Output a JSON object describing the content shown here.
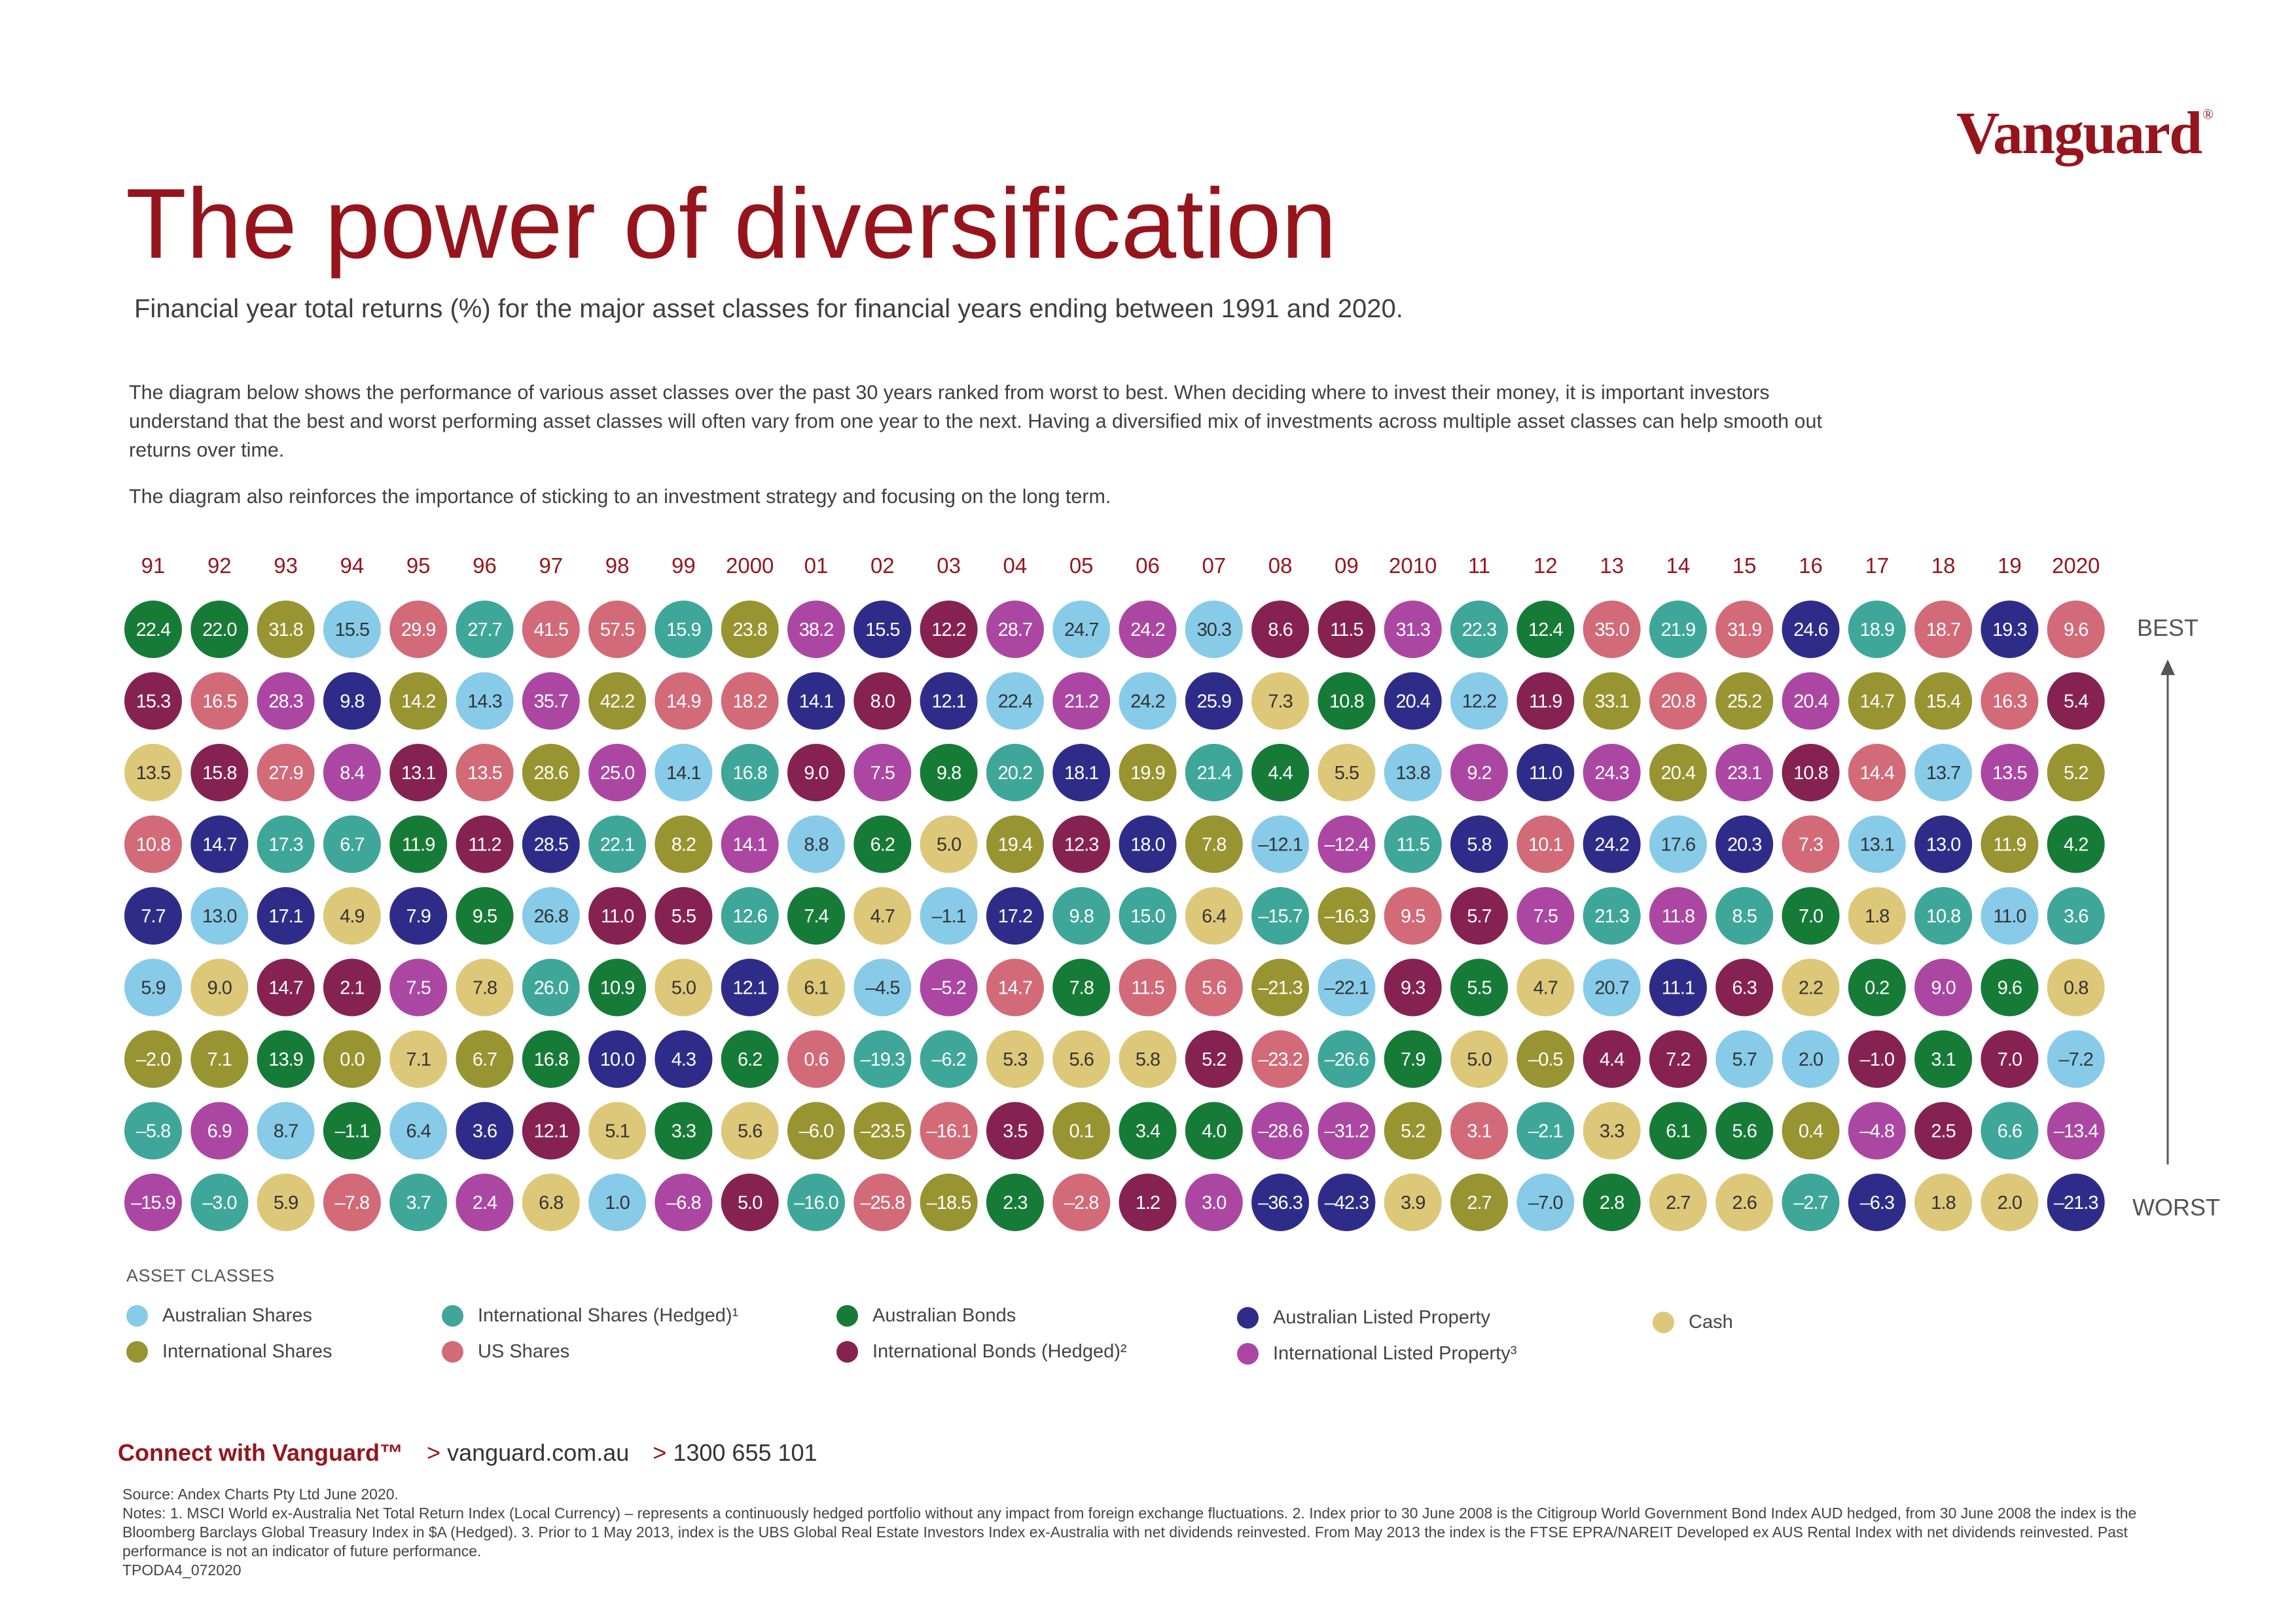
{
  "brand": {
    "name": "Vanguard",
    "mark": "®"
  },
  "header": {
    "title": "The power of diversification",
    "subtitle": "Financial year total returns (%) for the major asset classes for financial years ending between 1991 and 2020.",
    "intro": "The diagram below shows the performance of various asset classes over the past 30 years ranked from worst to best. When deciding where to invest their money, it is important investors understand that the best and worst performing asset classes will often vary from one year to the next. Having a diversified mix of investments across multiple asset classes can help smooth out returns over time.",
    "intro2": "The diagram also reinforces the importance of sticking to an investment strategy and focusing on the long term."
  },
  "chart_data": {
    "type": "table",
    "title": "The power of diversification",
    "years": [
      "91",
      "92",
      "93",
      "94",
      "95",
      "96",
      "97",
      "98",
      "99",
      "2000",
      "01",
      "02",
      "03",
      "04",
      "05",
      "06",
      "07",
      "08",
      "09",
      "2010",
      "11",
      "12",
      "13",
      "14",
      "15",
      "16",
      "17",
      "18",
      "19",
      "2020"
    ],
    "scale": {
      "best": "BEST",
      "worst": "WORST"
    },
    "ranks": [
      {
        "values": [
          "22.4",
          "22.0",
          "31.8",
          "15.5",
          "29.9",
          "27.7",
          "41.5",
          "57.5",
          "15.9",
          "23.8",
          "38.2",
          "15.5",
          "12.2",
          "28.7",
          "24.7",
          "24.2",
          "30.3",
          "8.6",
          "11.5",
          "31.3",
          "22.3",
          "12.4",
          "35.0",
          "21.9",
          "31.9",
          "24.6",
          "18.9",
          "18.7",
          "19.3",
          "9.6"
        ],
        "classes": [
          "AB",
          "AB",
          "IS",
          "AS",
          "US",
          "ISH",
          "US",
          "US",
          "ISH",
          "IS",
          "ILP",
          "ALP",
          "IBH",
          "ILP",
          "AS",
          "ILP",
          "AS",
          "IBH",
          "IBH",
          "ILP",
          "ISH",
          "AB",
          "US",
          "ISH",
          "US",
          "ALP",
          "ISH",
          "US",
          "ALP",
          "US"
        ]
      },
      {
        "values": [
          "15.3",
          "16.5",
          "28.3",
          "9.8",
          "14.2",
          "14.3",
          "35.7",
          "42.2",
          "14.9",
          "18.2",
          "14.1",
          "8.0",
          "12.1",
          "22.4",
          "21.2",
          "24.2",
          "25.9",
          "7.3",
          "10.8",
          "20.4",
          "12.2",
          "11.9",
          "33.1",
          "20.8",
          "25.2",
          "20.4",
          "14.7",
          "15.4",
          "16.3",
          "5.4"
        ],
        "classes": [
          "IBH",
          "US",
          "ILP",
          "ALP",
          "IS",
          "AS",
          "ILP",
          "IS",
          "US",
          "US",
          "ALP",
          "IBH",
          "ALP",
          "AS",
          "ILP",
          "AS",
          "ALP",
          "C",
          "AB",
          "ALP",
          "AS",
          "IBH",
          "IS",
          "US",
          "IS",
          "ILP",
          "IS",
          "IS",
          "US",
          "IBH"
        ]
      },
      {
        "values": [
          "13.5",
          "15.8",
          "27.9",
          "8.4",
          "13.1",
          "13.5",
          "28.6",
          "25.0",
          "14.1",
          "16.8",
          "9.0",
          "7.5",
          "9.8",
          "20.2",
          "18.1",
          "19.9",
          "21.4",
          "4.4",
          "5.5",
          "13.8",
          "9.2",
          "11.0",
          "24.3",
          "20.4",
          "23.1",
          "10.8",
          "14.4",
          "13.7",
          "13.5",
          "5.2"
        ],
        "classes": [
          "C",
          "IBH",
          "US",
          "ILP",
          "IBH",
          "US",
          "IS",
          "ILP",
          "AS",
          "ISH",
          "IBH",
          "ILP",
          "AB",
          "ISH",
          "ALP",
          "IS",
          "ISH",
          "AB",
          "C",
          "AS",
          "ILP",
          "ALP",
          "ILP",
          "IS",
          "ILP",
          "IBH",
          "US",
          "AS",
          "ILP",
          "IS"
        ]
      },
      {
        "values": [
          "10.8",
          "14.7",
          "17.3",
          "6.7",
          "11.9",
          "11.2",
          "28.5",
          "22.1",
          "8.2",
          "14.1",
          "8.8",
          "6.2",
          "5.0",
          "19.4",
          "12.3",
          "18.0",
          "7.8",
          "-12.1",
          "-12.4",
          "11.5",
          "5.8",
          "10.1",
          "24.2",
          "17.6",
          "20.3",
          "7.3",
          "13.1",
          "13.0",
          "11.9",
          "4.2"
        ],
        "classes": [
          "US",
          "ALP",
          "ISH",
          "ISH",
          "AB",
          "IBH",
          "ALP",
          "ISH",
          "IS",
          "ILP",
          "AS",
          "AB",
          "C",
          "IS",
          "IBH",
          "ALP",
          "IS",
          "AS",
          "ILP",
          "ISH",
          "ALP",
          "US",
          "ALP",
          "AS",
          "ALP",
          "US",
          "AS",
          "ALP",
          "IS",
          "AB"
        ]
      },
      {
        "values": [
          "7.7",
          "13.0",
          "17.1",
          "4.9",
          "7.9",
          "9.5",
          "26.8",
          "11.0",
          "5.5",
          "12.6",
          "7.4",
          "4.7",
          "-1.1",
          "17.2",
          "9.8",
          "15.0",
          "6.4",
          "-15.7",
          "-16.3",
          "9.5",
          "5.7",
          "7.5",
          "21.3",
          "11.8",
          "8.5",
          "7.0",
          "1.8",
          "10.8",
          "11.0",
          "3.6"
        ],
        "classes": [
          "ALP",
          "AS",
          "ALP",
          "C",
          "ALP",
          "AB",
          "AS",
          "IBH",
          "IBH",
          "ISH",
          "AB",
          "C",
          "AS",
          "ALP",
          "ISH",
          "ISH",
          "C",
          "ISH",
          "IS",
          "US",
          "IBH",
          "ILP",
          "ISH",
          "ILP",
          "ISH",
          "AB",
          "C",
          "ISH",
          "AS",
          "ISH"
        ]
      },
      {
        "values": [
          "5.9",
          "9.0",
          "14.7",
          "2.1",
          "7.5",
          "7.8",
          "26.0",
          "10.9",
          "5.0",
          "12.1",
          "6.1",
          "-4.5",
          "-5.2",
          "14.7",
          "7.8",
          "11.5",
          "5.6",
          "-21.3",
          "-22.1",
          "9.3",
          "5.5",
          "4.7",
          "20.7",
          "11.1",
          "6.3",
          "2.2",
          "0.2",
          "9.0",
          "9.6",
          "0.8"
        ],
        "classes": [
          "AS",
          "C",
          "IBH",
          "IBH",
          "ILP",
          "C",
          "ISH",
          "AB",
          "C",
          "ALP",
          "C",
          "AS",
          "ILP",
          "US",
          "AB",
          "US",
          "US",
          "IS",
          "AS",
          "IBH",
          "AB",
          "C",
          "AS",
          "ALP",
          "IBH",
          "C",
          "AB",
          "ILP",
          "AB",
          "C"
        ]
      },
      {
        "values": [
          "-2.0",
          "7.1",
          "13.9",
          "0.0",
          "7.1",
          "6.7",
          "16.8",
          "10.0",
          "4.3",
          "6.2",
          "0.6",
          "-19.3",
          "-6.2",
          "5.3",
          "5.6",
          "5.8",
          "5.2",
          "-23.2",
          "-26.6",
          "7.9",
          "5.0",
          "-0.5",
          "4.4",
          "7.2",
          "5.7",
          "2.0",
          "-1.0",
          "3.1",
          "7.0",
          "-7.2"
        ],
        "classes": [
          "IS",
          "IS",
          "AB",
          "IS",
          "C",
          "IS",
          "AB",
          "ALP",
          "ALP",
          "AB",
          "US",
          "ISH",
          "ISH",
          "C",
          "C",
          "C",
          "IBH",
          "US",
          "ISH",
          "AB",
          "C",
          "IS",
          "IBH",
          "IBH",
          "AS",
          "AS",
          "IBH",
          "AB",
          "IBH",
          "AS"
        ]
      },
      {
        "values": [
          "-5.8",
          "6.9",
          "8.7",
          "-1.1",
          "6.4",
          "3.6",
          "12.1",
          "5.1",
          "3.3",
          "5.6",
          "-6.0",
          "-23.5",
          "-16.1",
          "3.5",
          "0.1",
          "3.4",
          "4.0",
          "-28.6",
          "-31.2",
          "5.2",
          "3.1",
          "-2.1",
          "3.3",
          "6.1",
          "5.6",
          "0.4",
          "-4.8",
          "2.5",
          "6.6",
          "-13.4"
        ],
        "classes": [
          "ISH",
          "ILP",
          "AS",
          "AB",
          "AS",
          "ALP",
          "IBH",
          "C",
          "AB",
          "C",
          "IS",
          "IS",
          "US",
          "IBH",
          "IS",
          "AB",
          "AB",
          "ILP",
          "ILP",
          "IS",
          "US",
          "ISH",
          "C",
          "AB",
          "AB",
          "IS",
          "ILP",
          "IBH",
          "ISH",
          "ILP"
        ]
      },
      {
        "values": [
          "-15.9",
          "-3.0",
          "5.9",
          "-7.8",
          "3.7",
          "2.4",
          "6.8",
          "1.0",
          "-6.8",
          "5.0",
          "-16.0",
          "-25.8",
          "-18.5",
          "2.3",
          "-2.8",
          "1.2",
          "3.0",
          "-36.3",
          "-42.3",
          "3.9",
          "2.7",
          "-7.0",
          "2.8",
          "2.7",
          "2.6",
          "-2.7",
          "-6.3",
          "1.8",
          "2.0",
          "-21.3"
        ],
        "classes": [
          "ILP",
          "ISH",
          "C",
          "US",
          "ISH",
          "ILP",
          "C",
          "AS",
          "ILP",
          "IBH",
          "ISH",
          "US",
          "IS",
          "AB",
          "US",
          "IBH",
          "ILP",
          "ALP",
          "ALP",
          "C",
          "IS",
          "AS",
          "AB",
          "C",
          "C",
          "ISH",
          "ALP",
          "C",
          "C",
          "ALP"
        ]
      }
    ],
    "legend_title": "ASSET CLASSES",
    "legend": [
      {
        "key": "AS",
        "label": "Australian Shares",
        "color": "#87cbe9"
      },
      {
        "key": "IS",
        "label": "International Shares",
        "color": "#989431"
      },
      {
        "key": "ISH",
        "label": "International Shares (Hedged)¹",
        "color": "#3ea79a"
      },
      {
        "key": "US",
        "label": "US Shares",
        "color": "#d26a78"
      },
      {
        "key": "AB",
        "label": "Australian Bonds",
        "color": "#177b38"
      },
      {
        "key": "IBH",
        "label": "International Bonds (Hedged)²",
        "color": "#862251"
      },
      {
        "key": "ALP",
        "label": "Australian Listed Property",
        "color": "#2f2c89"
      },
      {
        "key": "ILP",
        "label": "International Listed Property³",
        "color": "#ab47a3"
      },
      {
        "key": "C",
        "label": "Cash",
        "color": "#dcc878"
      }
    ]
  },
  "footer": {
    "connect_label": "Connect with Vanguard™",
    "website": "vanguard.com.au",
    "phone": "1300 655 101",
    "source": "Source: Andex Charts Pty Ltd June 2020.",
    "notes": "Notes: 1. MSCI World ex-Australia Net Total Return Index (Local Currency) – represents a continuously hedged portfolio without any impact from foreign exchange fluctuations. 2. Index prior to 30 June 2008 is the Citigroup World Government Bond Index AUD hedged, from 30 June 2008 the index is the Bloomberg Barclays Global Treasury Index in $A (Hedged). 3. Prior to 1 May 2013, index is the UBS Global Real Estate Investors Index ex-Australia with net dividends reinvested. From May 2013 the index is the FTSE EPRA/NAREIT Developed ex AUS Rental Index with net dividends reinvested. Past performance is not an indicator of future performance.",
    "code": "TPODA4_072020"
  }
}
